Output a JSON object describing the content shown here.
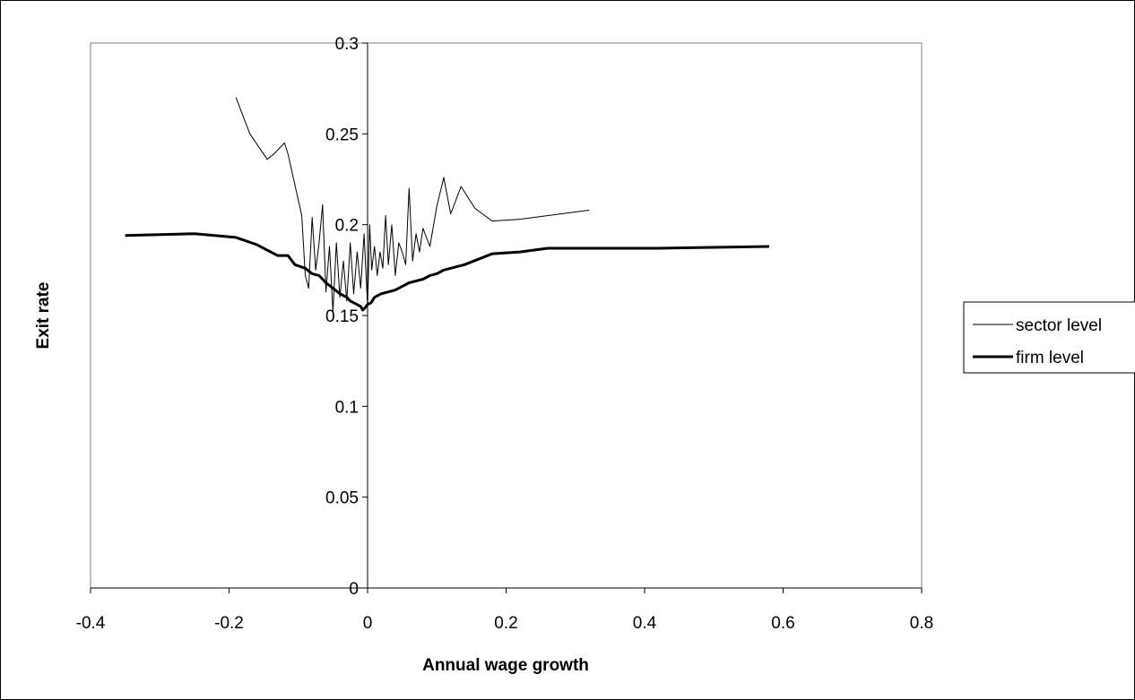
{
  "chart_data": {
    "type": "line",
    "title": "",
    "xlabel": "Annual wage growth",
    "ylabel": "Exit rate",
    "xlim": [
      -0.4,
      0.8
    ],
    "ylim": [
      0,
      0.3
    ],
    "xticks": [
      "-0.4",
      "-0.2",
      "0",
      "0.2",
      "0.4",
      "0.6",
      "0.8"
    ],
    "yticks": [
      "0",
      "0.05",
      "0.1",
      "0.15",
      "0.2",
      "0.25",
      "0.3"
    ],
    "xtick_values": [
      -0.4,
      -0.2,
      0,
      0.2,
      0.4,
      0.6,
      0.8
    ],
    "ytick_values": [
      0,
      0.05,
      0.1,
      0.15,
      0.2,
      0.25,
      0.3
    ],
    "grid": false,
    "legend_position": "right",
    "series": [
      {
        "name": "sector level",
        "color": "#000000",
        "style": "thin",
        "x": [
          -0.19,
          -0.17,
          -0.145,
          -0.135,
          -0.12,
          -0.115,
          -0.105,
          -0.095,
          -0.09,
          -0.085,
          -0.08,
          -0.075,
          -0.07,
          -0.065,
          -0.06,
          -0.055,
          -0.05,
          -0.045,
          -0.04,
          -0.035,
          -0.03,
          -0.025,
          -0.02,
          -0.015,
          -0.01,
          -0.005,
          0.0,
          0.003,
          0.006,
          0.01,
          0.014,
          0.018,
          0.022,
          0.026,
          0.03,
          0.035,
          0.04,
          0.045,
          0.05,
          0.055,
          0.06,
          0.065,
          0.07,
          0.075,
          0.08,
          0.09,
          0.1,
          0.11,
          0.12,
          0.135,
          0.155,
          0.18,
          0.22,
          0.32
        ],
        "y": [
          0.27,
          0.25,
          0.236,
          0.239,
          0.245,
          0.239,
          0.222,
          0.205,
          0.172,
          0.165,
          0.204,
          0.175,
          0.19,
          0.211,
          0.163,
          0.188,
          0.152,
          0.19,
          0.16,
          0.18,
          0.158,
          0.19,
          0.162,
          0.185,
          0.165,
          0.195,
          0.155,
          0.2,
          0.175,
          0.188,
          0.172,
          0.185,
          0.176,
          0.205,
          0.178,
          0.2,
          0.172,
          0.19,
          0.185,
          0.178,
          0.22,
          0.18,
          0.195,
          0.185,
          0.198,
          0.188,
          0.21,
          0.226,
          0.206,
          0.221,
          0.209,
          0.202,
          0.203,
          0.208
        ]
      },
      {
        "name": "firm level",
        "color": "#000000",
        "style": "thick",
        "x": [
          -0.35,
          -0.25,
          -0.19,
          -0.16,
          -0.13,
          -0.115,
          -0.105,
          -0.09,
          -0.08,
          -0.07,
          -0.06,
          -0.05,
          -0.04,
          -0.03,
          -0.025,
          -0.02,
          -0.015,
          -0.01,
          -0.007,
          -0.004,
          0.0,
          0.005,
          0.01,
          0.02,
          0.03,
          0.04,
          0.05,
          0.06,
          0.07,
          0.08,
          0.09,
          0.1,
          0.11,
          0.12,
          0.14,
          0.16,
          0.18,
          0.22,
          0.26,
          0.42,
          0.58
        ],
        "y": [
          0.194,
          0.195,
          0.193,
          0.189,
          0.183,
          0.183,
          0.178,
          0.176,
          0.173,
          0.172,
          0.168,
          0.165,
          0.162,
          0.16,
          0.158,
          0.157,
          0.156,
          0.155,
          0.153,
          0.154,
          0.156,
          0.157,
          0.16,
          0.162,
          0.163,
          0.164,
          0.166,
          0.168,
          0.169,
          0.17,
          0.172,
          0.173,
          0.175,
          0.176,
          0.178,
          0.181,
          0.184,
          0.185,
          0.187,
          0.187,
          0.188
        ]
      }
    ]
  }
}
